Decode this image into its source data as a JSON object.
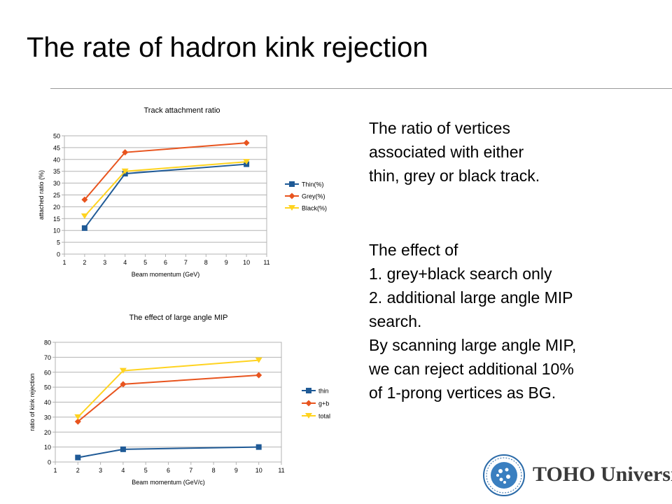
{
  "slide": {
    "title": "The rate of hadron kink rejection",
    "text1": [
      "The ratio of vertices",
      "associated with either",
      "thin, grey or black track."
    ],
    "text2": [
      "The effect of",
      "1. grey+black search only",
      "2. additional large angle MIP",
      "search.",
      "By scanning large angle MIP,",
      "we can reject additional 10%",
      "of 1-prong vertices as BG."
    ]
  },
  "logo": {
    "text": "TOHO University",
    "seal_text": "TOHO UNIVERSITY NATURE LIFE MAN"
  },
  "chart_data": [
    {
      "type": "line",
      "title": "Track attachment ratio",
      "xlabel": "Beam momentum (GeV)",
      "ylabel": "attached ratio (%)",
      "xlim": [
        1,
        11
      ],
      "ylim": [
        0,
        50
      ],
      "xticks": [
        1,
        2,
        3,
        4,
        5,
        6,
        7,
        8,
        9,
        10,
        11
      ],
      "yticks": [
        0,
        5,
        10,
        15,
        20,
        25,
        30,
        35,
        40,
        45,
        50
      ],
      "grid": "horizontal",
      "legend_position": "right",
      "series": [
        {
          "name": "Thin(%)",
          "color": "#1f5a96",
          "marker": "square",
          "x": [
            2,
            4,
            10
          ],
          "values": [
            11,
            34,
            38
          ]
        },
        {
          "name": "Grey(%)",
          "color": "#e8541e",
          "marker": "diamond",
          "x": [
            2,
            4,
            10
          ],
          "values": [
            23,
            43,
            47
          ]
        },
        {
          "name": "Black(%)",
          "color": "#ffd320",
          "marker": "triangle",
          "x": [
            2,
            4,
            10
          ],
          "values": [
            16,
            35,
            39
          ]
        }
      ]
    },
    {
      "type": "line",
      "title": "The effect of large angle MIP",
      "xlabel": "Beam momentum (GeV/c)",
      "ylabel": "ratio of kink rejection",
      "xlim": [
        1,
        11
      ],
      "ylim": [
        0,
        80
      ],
      "xticks": [
        1,
        2,
        3,
        4,
        5,
        6,
        7,
        8,
        9,
        10,
        11
      ],
      "yticks": [
        0,
        10,
        20,
        30,
        40,
        50,
        60,
        70,
        80
      ],
      "grid": "horizontal",
      "legend_position": "right",
      "series": [
        {
          "name": "thin",
          "color": "#1f5a96",
          "marker": "square",
          "x": [
            2,
            4,
            10
          ],
          "values": [
            3,
            8.5,
            10
          ]
        },
        {
          "name": "g+b",
          "color": "#e8541e",
          "marker": "diamond",
          "x": [
            2,
            4,
            10
          ],
          "values": [
            27,
            52,
            58
          ]
        },
        {
          "name": "total",
          "color": "#ffd320",
          "marker": "triangle",
          "x": [
            2,
            4,
            10
          ],
          "values": [
            30,
            61,
            68
          ]
        }
      ]
    }
  ]
}
